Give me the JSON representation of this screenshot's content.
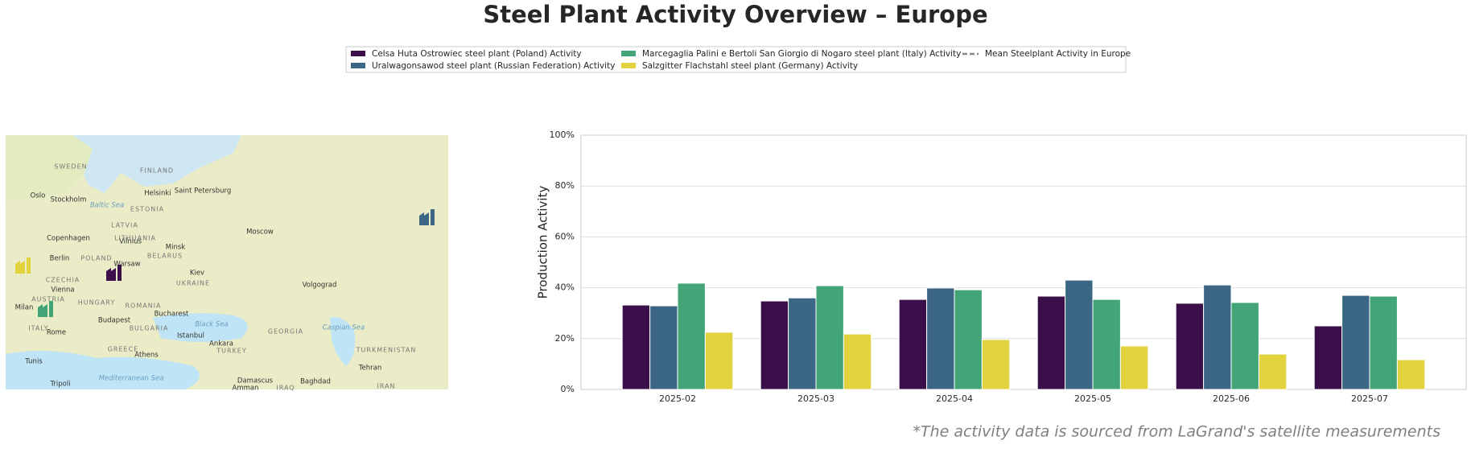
{
  "chart_data": {
    "type": "bar",
    "title": "Steel Plant Activity Overview – Europe",
    "ylabel": "Production Activity",
    "footnote": "*The activity data is sourced from LaGrand's satellite measurements",
    "categories": [
      "2025-02",
      "2025-03",
      "2025-04",
      "2025-05",
      "2025-06",
      "2025-07"
    ],
    "series": [
      {
        "name": "Celsa Huta Ostrowiec steel plant (Poland) Activity",
        "color": "#3b0f4a",
        "values": [
          33.2,
          34.8,
          35.4,
          36.7,
          33.9,
          25.0
        ]
      },
      {
        "name": "Uralwagonsawod steel plant (Russian Federation) Activity",
        "color": "#3c6784",
        "values": [
          32.9,
          36.0,
          39.9,
          43.0,
          41.1,
          37.0
        ]
      },
      {
        "name": "Marcegaglia Palini e Bertoli San Giorgio di Nogaro steel plant (Italy) Activity",
        "color": "#43a577",
        "values": [
          41.8,
          40.8,
          39.2,
          35.4,
          34.2,
          36.7
        ]
      },
      {
        "name": "Salzgitter Flachstahl steel plant (Germany) Activity",
        "color": "#e2d23e",
        "values": [
          22.5,
          21.8,
          19.6,
          17.1,
          13.9,
          11.7
        ]
      }
    ],
    "mean_legend": {
      "name": "Mean Steelplant Activity in Europe",
      "color": "#888888"
    },
    "ylim": [
      0,
      100
    ],
    "yticks": [
      {
        "value": 0,
        "label": "0%"
      },
      {
        "value": 20,
        "label": "20%"
      },
      {
        "value": 40,
        "label": "40%"
      },
      {
        "value": 60,
        "label": "60%"
      },
      {
        "value": 80,
        "label": "80%"
      },
      {
        "value": 100,
        "label": "100%"
      }
    ],
    "grid": true,
    "map_labels": [
      "SWEDEN",
      "FINLAND",
      "Helsinki",
      "Saint Petersburg",
      "Oslo",
      "Stockholm",
      "Baltic Sea",
      "ESTONIA",
      "LATVIA",
      "Copenhagen",
      "LITHUANIA",
      "Vilnius",
      "Minsk",
      "Moscow",
      "BELARUS",
      "Berlin",
      "POLAND",
      "Warsaw",
      "CZECHIA",
      "UKRAINE",
      "Kiev",
      "Volgograd",
      "Vienna",
      "Budapest",
      "Milan",
      "AUSTRIA",
      "HUNGARY",
      "ROMANIA",
      "ITALY",
      "Rome",
      "Bucharest",
      "BULGARIA",
      "Black Sea",
      "GEORGIA",
      "Caspian Sea",
      "Istanbul",
      "Ankara",
      "TURKEY",
      "GREECE",
      "Athens",
      "Tunis",
      "Tripoli",
      "Mediterranean Sea",
      "Damascus",
      "Baghdad",
      "Tehran",
      "TURKMENISTAN",
      "IRAN",
      "IRAQ",
      "Amman"
    ]
  }
}
